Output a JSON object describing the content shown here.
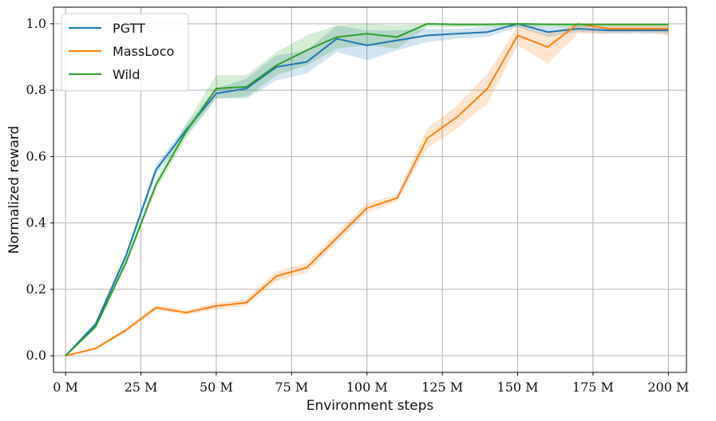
{
  "chart_data": {
    "type": "line",
    "xlabel": "Environment steps",
    "ylabel": "Normalized reward",
    "xlim": [
      -4,
      206
    ],
    "ylim": [
      -0.05,
      1.05
    ],
    "xticks": [
      0,
      25,
      50,
      75,
      100,
      125,
      150,
      175,
      200
    ],
    "xtick_labels": [
      "0 M",
      "25 M",
      "50 M",
      "75 M",
      "100 M",
      "125 M",
      "150 M",
      "175 M",
      "200 M"
    ],
    "yticks": [
      0.0,
      0.2,
      0.4,
      0.6,
      0.8,
      1.0
    ],
    "ytick_labels": [
      "0.0",
      "0.2",
      "0.4",
      "0.6",
      "0.8",
      "1.0"
    ],
    "grid": true,
    "legend_position": "top-left",
    "x": [
      0,
      10,
      20,
      30,
      40,
      50,
      60,
      70,
      80,
      90,
      100,
      110,
      120,
      130,
      140,
      150,
      160,
      170,
      180,
      190,
      200
    ],
    "series": [
      {
        "name": "PGTT",
        "color": "#1f77b4",
        "values": [
          0.0,
          0.095,
          0.3,
          0.56,
          0.68,
          0.79,
          0.805,
          0.87,
          0.885,
          0.955,
          0.935,
          0.95,
          0.965,
          0.97,
          0.975,
          1.0,
          0.975,
          0.985,
          0.98,
          0.98,
          0.98
        ],
        "lower": [
          0.0,
          0.085,
          0.29,
          0.545,
          0.665,
          0.775,
          0.775,
          0.83,
          0.85,
          0.915,
          0.89,
          0.92,
          0.945,
          0.955,
          0.96,
          0.99,
          0.96,
          0.975,
          0.97,
          0.97,
          0.97
        ],
        "upper": [
          0.0,
          0.105,
          0.31,
          0.575,
          0.695,
          0.805,
          0.835,
          0.905,
          0.92,
          0.995,
          0.98,
          0.98,
          0.985,
          0.985,
          0.99,
          1.0,
          0.99,
          0.995,
          0.99,
          0.99,
          0.99
        ]
      },
      {
        "name": "MassLoco",
        "color": "#ff7f0e",
        "values": [
          0.0,
          0.022,
          0.077,
          0.145,
          0.13,
          0.15,
          0.16,
          0.24,
          0.265,
          0.355,
          0.445,
          0.475,
          0.655,
          0.72,
          0.805,
          0.965,
          0.93,
          1.0,
          0.985,
          0.985,
          0.985
        ],
        "lower": [
          0.0,
          0.018,
          0.07,
          0.138,
          0.123,
          0.14,
          0.15,
          0.225,
          0.25,
          0.34,
          0.43,
          0.465,
          0.625,
          0.685,
          0.76,
          0.935,
          0.88,
          0.97,
          0.97,
          0.975,
          0.965
        ],
        "upper": [
          0.0,
          0.026,
          0.084,
          0.152,
          0.137,
          0.16,
          0.17,
          0.255,
          0.28,
          0.37,
          0.46,
          0.485,
          0.685,
          0.755,
          0.85,
          0.995,
          0.97,
          1.0,
          1.0,
          1.0,
          1.0
        ]
      },
      {
        "name": "Wild",
        "color": "#2ca02c",
        "values": [
          0.0,
          0.088,
          0.28,
          0.515,
          0.675,
          0.805,
          0.81,
          0.875,
          0.92,
          0.96,
          0.97,
          0.96,
          1.0,
          0.998,
          0.998,
          1.0,
          0.998,
          0.998,
          0.998,
          0.998,
          0.998
        ],
        "lower": [
          0.0,
          0.08,
          0.27,
          0.5,
          0.655,
          0.775,
          0.78,
          0.845,
          0.875,
          0.925,
          0.935,
          0.925,
          0.99,
          0.99,
          0.99,
          0.99,
          0.99,
          0.99,
          0.99,
          0.99,
          0.99
        ],
        "upper": [
          0.0,
          0.096,
          0.29,
          0.53,
          0.7,
          0.845,
          0.845,
          0.915,
          0.965,
          0.995,
          1.0,
          0.995,
          1.0,
          1.0,
          1.0,
          1.0,
          1.0,
          1.0,
          1.0,
          1.0,
          1.0
        ]
      }
    ]
  }
}
